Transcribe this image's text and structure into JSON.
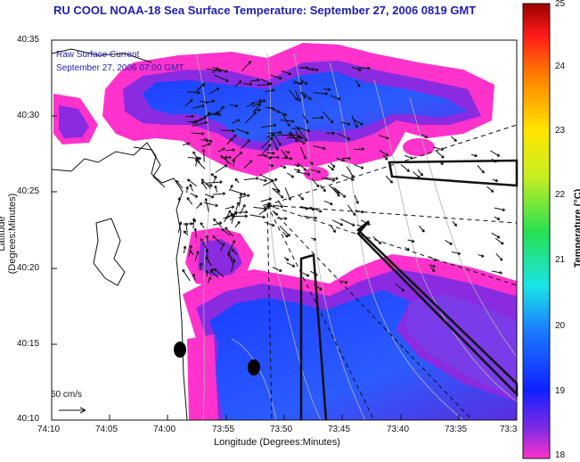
{
  "title": "RU COOL  NOAA-18  Sea Surface Temperature:  September 27, 2006 0819 GMT",
  "legend": {
    "current_title": "Raw Surface Current",
    "current_time": "September 27, 2006 07:00 GMT",
    "scale_label": "50 cm/s"
  },
  "axes": {
    "xlabel": "Longitude (Degrees:Minutes)",
    "ylabel": "Latitude (Degrees:Minutes)",
    "xticks": [
      "74:10",
      "74:05",
      "74:00",
      "73:55",
      "73:50",
      "73:45",
      "73:40",
      "73:35",
      "73:3"
    ],
    "yticks": [
      "40:35",
      "40:30",
      "40:25",
      "40:20",
      "40:15",
      "40:10"
    ]
  },
  "colorbar": {
    "label": "Temperature (°C)",
    "ticks": [
      "25",
      "24",
      "23",
      "22",
      "21",
      "20",
      "19",
      "18"
    ],
    "min": 18,
    "max": 25
  },
  "colors": {
    "water_warm": "#ff33cc",
    "water_mid": "#8a2be2",
    "water_cool": "#1a4cff",
    "coast": "#111111",
    "title": "#1f1fb0"
  }
}
